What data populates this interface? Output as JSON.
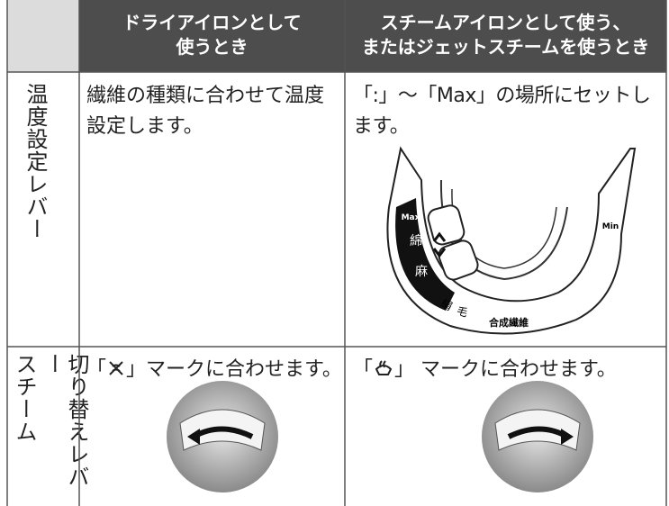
{
  "header": {
    "columns": [
      [
        "ドライアイロンとして",
        "使うとき"
      ],
      [
        "スチームアイロンとして使う、",
        "またはジェットスチームを使うとき"
      ]
    ]
  },
  "rows": [
    {
      "label": [
        "温度設定レバー"
      ],
      "cells": [
        "繊維の種類に合わせて温度設定します。",
        "「:」～「Max」の場所にセットします。"
      ]
    },
    {
      "label": [
        "スチーム",
        "切り替えレバー"
      ],
      "cells": [
        [
          "「",
          "」マークに合わせます。"
        ],
        [
          "「",
          "」 マークに合わせます。"
        ]
      ]
    }
  ],
  "dial": {
    "max": "Max",
    "min": "Min",
    "cotton": "綿",
    "linen": "麻",
    "silk": "絹",
    "wool": "毛",
    "synthetic": "合成繊維"
  }
}
